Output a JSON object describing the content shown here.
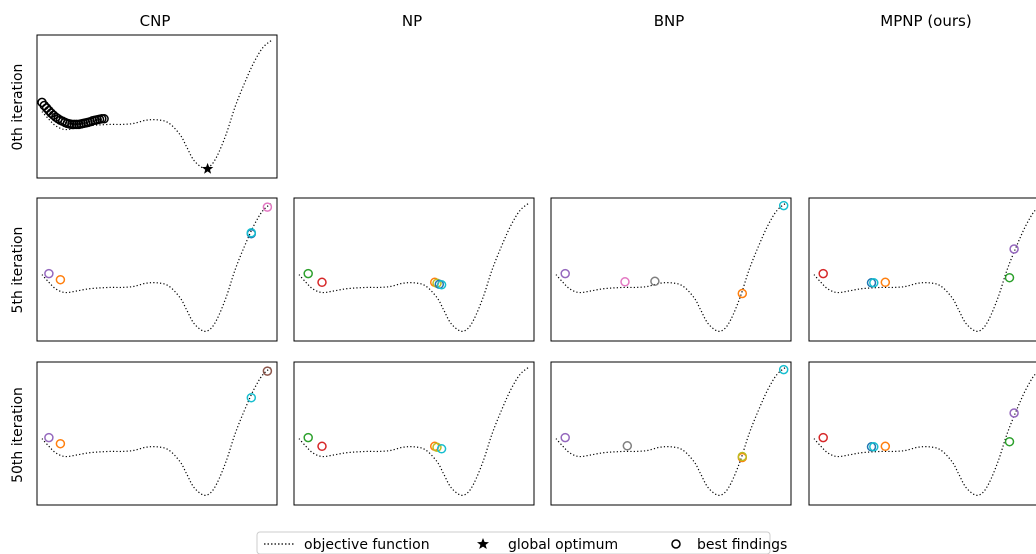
{
  "columns": [
    "CNP",
    "NP",
    "BNP",
    "MPNP (ours)"
  ],
  "rows": [
    "0th iteration",
    "5th iteration",
    "50th iteration"
  ],
  "legend": {
    "objective": "objective function",
    "optimum": "global optimum",
    "findings": "best findings"
  },
  "colors": {
    "purple": "#9467bd",
    "orange": "#ff7f0e",
    "pink": "#e377c2",
    "cyan": "#17becf",
    "blue": "#1f77b4",
    "green": "#2ca02c",
    "red": "#d62728",
    "gray": "#7f7f7f",
    "brown": "#8c564b",
    "olive": "#bcbd22"
  },
  "chart_data": {
    "type": "scatter",
    "xlim": [
      0,
      1
    ],
    "ylim": [
      -1.1,
      1.5
    ],
    "objective_curve": {
      "x": [
        0.0,
        0.03,
        0.06,
        0.1,
        0.15,
        0.2,
        0.25,
        0.3,
        0.35,
        0.4,
        0.45,
        0.5,
        0.55,
        0.6,
        0.63,
        0.66,
        0.7,
        0.73,
        0.76,
        0.8,
        0.84,
        0.88,
        0.92,
        0.96,
        1.0
      ],
      "y": [
        0.1,
        -0.05,
        -0.18,
        -0.25,
        -0.22,
        -0.18,
        -0.16,
        -0.15,
        -0.15,
        -0.13,
        -0.07,
        -0.06,
        -0.12,
        -0.35,
        -0.6,
        -0.85,
        -1.0,
        -0.97,
        -0.78,
        -0.35,
        0.2,
        0.65,
        1.05,
        1.35,
        1.5
      ]
    },
    "global_optimum": {
      "x": 0.72,
      "y": -1.02
    },
    "panels": [
      {
        "row": 0,
        "col": 0,
        "findings": [
          {
            "x": 0.0,
            "y": 0.28,
            "color": "black"
          },
          {
            "x": 0.01,
            "y": 0.22,
            "color": "black"
          },
          {
            "x": 0.02,
            "y": 0.17,
            "color": "black"
          },
          {
            "x": 0.03,
            "y": 0.12,
            "color": "black"
          },
          {
            "x": 0.04,
            "y": 0.07,
            "color": "black"
          },
          {
            "x": 0.05,
            "y": 0.03,
            "color": "black"
          },
          {
            "x": 0.06,
            "y": -0.01,
            "color": "black"
          },
          {
            "x": 0.07,
            "y": -0.04,
            "color": "black"
          },
          {
            "x": 0.08,
            "y": -0.07,
            "color": "black"
          },
          {
            "x": 0.09,
            "y": -0.09,
            "color": "black"
          },
          {
            "x": 0.1,
            "y": -0.11,
            "color": "black"
          },
          {
            "x": 0.11,
            "y": -0.13,
            "color": "black"
          },
          {
            "x": 0.12,
            "y": -0.14,
            "color": "black"
          },
          {
            "x": 0.13,
            "y": -0.15,
            "color": "black"
          },
          {
            "x": 0.14,
            "y": -0.15,
            "color": "black"
          },
          {
            "x": 0.15,
            "y": -0.15,
            "color": "black"
          },
          {
            "x": 0.16,
            "y": -0.15,
            "color": "black"
          },
          {
            "x": 0.17,
            "y": -0.14,
            "color": "black"
          },
          {
            "x": 0.18,
            "y": -0.13,
            "color": "black"
          },
          {
            "x": 0.19,
            "y": -0.12,
            "color": "black"
          },
          {
            "x": 0.2,
            "y": -0.11,
            "color": "black"
          },
          {
            "x": 0.21,
            "y": -0.1,
            "color": "black"
          },
          {
            "x": 0.22,
            "y": -0.08,
            "color": "black"
          },
          {
            "x": 0.23,
            "y": -0.07,
            "color": "black"
          },
          {
            "x": 0.24,
            "y": -0.06,
            "color": "black"
          },
          {
            "x": 0.25,
            "y": -0.05,
            "color": "black"
          },
          {
            "x": 0.26,
            "y": -0.04,
            "color": "black"
          },
          {
            "x": 0.27,
            "y": -0.04,
            "color": "black"
          }
        ],
        "show_optimum": true
      },
      {
        "row": 1,
        "col": 0,
        "findings": [
          {
            "x": 0.03,
            "y": 0.12,
            "color": "#9467bd"
          },
          {
            "x": 0.08,
            "y": 0.0,
            "color": "#ff7f0e"
          },
          {
            "x": 0.91,
            "y": 0.9,
            "color": "#1f77b4"
          },
          {
            "x": 0.91,
            "y": 0.92,
            "color": "#17becf"
          },
          {
            "x": 0.98,
            "y": 1.42,
            "color": "#e377c2"
          }
        ],
        "show_optimum": false
      },
      {
        "row": 1,
        "col": 1,
        "findings": [
          {
            "x": 0.04,
            "y": 0.12,
            "color": "#2ca02c"
          },
          {
            "x": 0.1,
            "y": -0.05,
            "color": "#d62728"
          },
          {
            "x": 0.59,
            "y": -0.05,
            "color": "#ff7f0e"
          },
          {
            "x": 0.6,
            "y": -0.07,
            "color": "#bcbd22"
          },
          {
            "x": 0.61,
            "y": -0.09,
            "color": "#1f77b4"
          },
          {
            "x": 0.62,
            "y": -0.1,
            "color": "#17becf"
          }
        ],
        "show_optimum": false
      },
      {
        "row": 1,
        "col": 2,
        "findings": [
          {
            "x": 0.04,
            "y": 0.12,
            "color": "#9467bd"
          },
          {
            "x": 0.3,
            "y": -0.04,
            "color": "#e377c2"
          },
          {
            "x": 0.43,
            "y": -0.03,
            "color": "#7f7f7f"
          },
          {
            "x": 0.81,
            "y": -0.27,
            "color": "#ff7f0e"
          },
          {
            "x": 0.99,
            "y": 1.45,
            "color": "#17becf"
          }
        ],
        "show_optimum": false
      },
      {
        "row": 1,
        "col": 3,
        "findings": [
          {
            "x": 0.04,
            "y": 0.12,
            "color": "#d62728"
          },
          {
            "x": 0.25,
            "y": -0.06,
            "color": "#1f77b4"
          },
          {
            "x": 0.26,
            "y": -0.06,
            "color": "#17becf"
          },
          {
            "x": 0.31,
            "y": -0.05,
            "color": "#ff7f0e"
          },
          {
            "x": 0.85,
            "y": 0.04,
            "color": "#2ca02c"
          },
          {
            "x": 0.87,
            "y": 0.6,
            "color": "#9467bd"
          }
        ],
        "show_optimum": false
      },
      {
        "row": 2,
        "col": 0,
        "findings": [
          {
            "x": 0.03,
            "y": 0.12,
            "color": "#9467bd"
          },
          {
            "x": 0.08,
            "y": 0.0,
            "color": "#ff7f0e"
          },
          {
            "x": 0.91,
            "y": 0.9,
            "color": "#17becf"
          },
          {
            "x": 0.98,
            "y": 1.42,
            "color": "#8c564b"
          }
        ],
        "show_optimum": false
      },
      {
        "row": 2,
        "col": 1,
        "findings": [
          {
            "x": 0.04,
            "y": 0.12,
            "color": "#2ca02c"
          },
          {
            "x": 0.1,
            "y": -0.05,
            "color": "#d62728"
          },
          {
            "x": 0.59,
            "y": -0.05,
            "color": "#ff7f0e"
          },
          {
            "x": 0.6,
            "y": -0.07,
            "color": "#bcbd22"
          },
          {
            "x": 0.62,
            "y": -0.1,
            "color": "#17becf"
          }
        ],
        "show_optimum": false
      },
      {
        "row": 2,
        "col": 2,
        "findings": [
          {
            "x": 0.04,
            "y": 0.12,
            "color": "#9467bd"
          },
          {
            "x": 0.31,
            "y": -0.04,
            "color": "#7f7f7f"
          },
          {
            "x": 0.81,
            "y": -0.27,
            "color": "#ff7f0e"
          },
          {
            "x": 0.81,
            "y": -0.25,
            "color": "#bcbd22"
          },
          {
            "x": 0.99,
            "y": 1.45,
            "color": "#17becf"
          }
        ],
        "show_optimum": false
      },
      {
        "row": 2,
        "col": 3,
        "findings": [
          {
            "x": 0.04,
            "y": 0.12,
            "color": "#d62728"
          },
          {
            "x": 0.25,
            "y": -0.06,
            "color": "#1f77b4"
          },
          {
            "x": 0.26,
            "y": -0.06,
            "color": "#17becf"
          },
          {
            "x": 0.31,
            "y": -0.05,
            "color": "#ff7f0e"
          },
          {
            "x": 0.85,
            "y": 0.04,
            "color": "#2ca02c"
          },
          {
            "x": 0.87,
            "y": 0.6,
            "color": "#9467bd"
          }
        ],
        "show_optimum": false
      }
    ]
  }
}
